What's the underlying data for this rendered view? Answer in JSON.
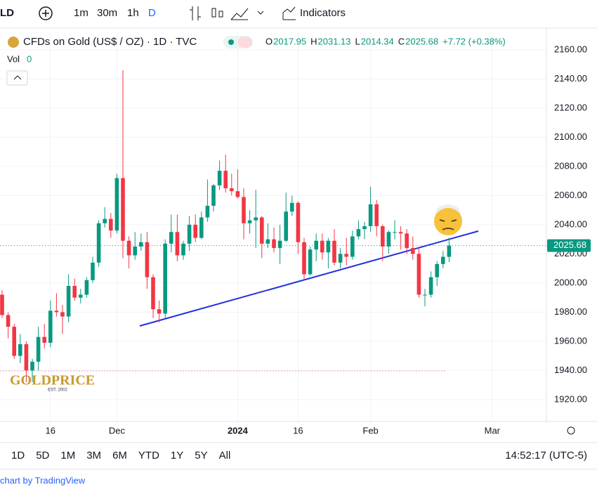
{
  "toolbar": {
    "symbol": "LD",
    "intervals": [
      "1m",
      "30m",
      "1h",
      "D"
    ],
    "indicators": "Indicators"
  },
  "chart_data": {
    "type": "candlestick",
    "title": "CFDs on Gold (US$ / OZ) · 1D · TVC",
    "ohlc_letters": [
      "O",
      "H",
      "L",
      "C"
    ],
    "change": "+7.72 (+0.38%)",
    "volume_label": "Vol",
    "volume": 0,
    "categories": [
      "Nov 6",
      "Nov 7",
      "Nov 8",
      "Nov 9",
      "Nov 10",
      "Nov 13",
      "Nov 14",
      "Nov 15",
      "Nov 16",
      "Nov 17",
      "Nov 20",
      "Nov 21",
      "Nov 22",
      "Nov 23",
      "Nov 24",
      "Nov 27",
      "Nov 28",
      "Nov 29",
      "Nov 30",
      "Dec 1",
      "Dec 4",
      "Dec 5",
      "Dec 6",
      "Dec 7",
      "Dec 8",
      "Dec 11",
      "Dec 12",
      "Dec 13",
      "Dec 14",
      "Dec 15",
      "Dec 18",
      "Dec 19",
      "Dec 20",
      "Dec 21",
      "Dec 22",
      "Dec 26",
      "Dec 27",
      "Dec 28",
      "Dec 29",
      "Jan 2",
      "Jan 3",
      "Jan 4",
      "Jan 5",
      "Jan 8",
      "Jan 9",
      "Jan 10",
      "Jan 11",
      "Jan 12",
      "Jan 15",
      "Jan 16",
      "Jan 17",
      "Jan 18",
      "Jan 19",
      "Jan 22",
      "Jan 23",
      "Jan 24",
      "Jan 25",
      "Jan 26",
      "Jan 29",
      "Jan 30",
      "Jan 31",
      "Feb 1",
      "Feb 2",
      "Feb 5",
      "Feb 6",
      "Feb 7",
      "Feb 8",
      "Feb 9",
      "Feb 12",
      "Feb 13",
      "Feb 14",
      "Feb 15",
      "Feb 16",
      "Feb 19",
      "Feb 20"
    ],
    "open": [
      1992,
      1978,
      1970,
      1950,
      1958,
      1940,
      1946,
      1963,
      1959,
      1981,
      1980,
      1977,
      1998,
      1990,
      1992,
      2002,
      2014,
      2041,
      2044,
      2036,
      2072,
      2029,
      2019,
      2025,
      2028,
      2004,
      1982,
      1979,
      2027,
      2035,
      2019,
      2027,
      2040,
      2031,
      2045,
      2053,
      2067,
      2077,
      2065,
      2063,
      2059,
      2041,
      2043,
      2045,
      2027,
      2030,
      2024,
      2029,
      2049,
      2055,
      2028,
      2006,
      2023,
      2029,
      2021,
      2029,
      2014,
      2020,
      2018,
      2032,
      2037,
      2039,
      2054,
      2039,
      2025,
      2035,
      2035,
      2034,
      2024,
      2020,
      1992,
      1992,
      2004,
      2013,
      2017.95
    ],
    "high": [
      1995,
      1980,
      1972,
      1965,
      1960,
      1948,
      1970,
      1972,
      1988,
      1993,
      1985,
      2006,
      2003,
      1996,
      2004,
      2018,
      2043,
      2052,
      2048,
      2075,
      2146,
      2032,
      2035,
      2034,
      2035,
      2006,
      1988,
      2030,
      2047,
      2047,
      2029,
      2046,
      2047,
      2049,
      2071,
      2068,
      2084,
      2088,
      2075,
      2078,
      2065,
      2050,
      2064,
      2046,
      2041,
      2038,
      2040,
      2062,
      2060,
      2056,
      2031,
      2025,
      2034,
      2034,
      2031,
      2037,
      2024,
      2031,
      2036,
      2043,
      2042,
      2066,
      2057,
      2040,
      2036,
      2043,
      2039,
      2037,
      2032,
      2024,
      1996,
      2008,
      2015,
      2022,
      2031.13
    ],
    "low": [
      1976,
      1962,
      1948,
      1945,
      1932,
      1932,
      1940,
      1955,
      1956,
      1977,
      1965,
      1973,
      1988,
      1986,
      1990,
      2000,
      2011,
      2038,
      2031,
      2034,
      2017,
      2010,
      2016,
      2022,
      1996,
      1976,
      1973,
      1976,
      2021,
      2015,
      2016,
      2022,
      2028,
      2030,
      2042,
      2049,
      2064,
      2062,
      2060,
      2058,
      2030,
      2034,
      2024,
      2017,
      2024,
      2021,
      2013,
      2028,
      2046,
      2020,
      2002,
      2005,
      2015,
      2016,
      2010,
      2012,
      2010,
      2012,
      2016,
      2030,
      2030,
      2035,
      2032,
      2015,
      2020,
      2030,
      2023,
      2020,
      2016,
      1990,
      1984,
      1990,
      1998,
      2010,
      2014.34
    ],
    "close": [
      1978,
      1970,
      1950,
      1958,
      1940,
      1946,
      1963,
      1959,
      1981,
      1980,
      1977,
      1998,
      1990,
      1992,
      2002,
      2014,
      2041,
      2044,
      2036,
      2072,
      2029,
      2019,
      2025,
      2028,
      2004,
      1982,
      1979,
      2027,
      2035,
      2019,
      2027,
      2040,
      2031,
      2045,
      2053,
      2067,
      2077,
      2065,
      2063,
      2059,
      2041,
      2043,
      2045,
      2027,
      2030,
      2024,
      2029,
      2049,
      2055,
      2028,
      2006,
      2023,
      2029,
      2021,
      2029,
      2014,
      2020,
      2018,
      2032,
      2037,
      2039,
      2054,
      2039,
      2025,
      2035,
      2035,
      2034,
      2024,
      2020,
      1992,
      1992,
      2004,
      2013,
      2018,
      2025.68
    ],
    "up_color": "#089981",
    "down_color": "#f23645",
    "ylim": [
      1905,
      2172.5
    ],
    "yticks": [
      {
        "value": 1920,
        "label": "1920.00"
      },
      {
        "value": 1940,
        "label": "1940.00"
      },
      {
        "value": 1960,
        "label": "1960.00"
      },
      {
        "value": 1980,
        "label": "1980.00"
      },
      {
        "value": 2000,
        "label": "2000.00"
      },
      {
        "value": 2020,
        "label": "2020.00"
      },
      {
        "value": 2040,
        "label": "2040.00"
      },
      {
        "value": 2060,
        "label": "2060.00"
      },
      {
        "value": 2080,
        "label": "2080.00"
      },
      {
        "value": 2100,
        "label": "2100.00"
      },
      {
        "value": 2120,
        "label": "2120.00"
      },
      {
        "value": 2140,
        "label": "2140.00"
      },
      {
        "value": 2160,
        "label": "2160.00"
      }
    ],
    "xticks": [
      {
        "value": "Nov 16",
        "label": "16"
      },
      {
        "value": "Dec 1",
        "label": "Dec"
      },
      {
        "value": "Jan 2",
        "label": "2024"
      },
      {
        "value": "Jan 16",
        "label": "16"
      },
      {
        "value": "Feb 1",
        "label": "Feb"
      },
      {
        "value": "Mar 1",
        "label": "Mar"
      }
    ]
  },
  "logo": {
    "name": "GOLDPRICE",
    "est": "EST. 2002"
  },
  "ranges": [
    "1D",
    "5D",
    "1M",
    "3M",
    "6M",
    "YTD",
    "1Y",
    "5Y",
    "All"
  ],
  "clock": "14:52:17 (UTC-5)",
  "credit": "chart by TradingView"
}
